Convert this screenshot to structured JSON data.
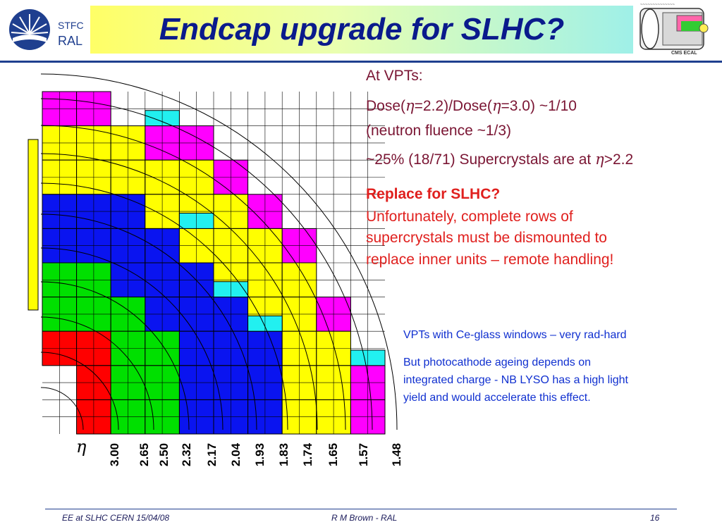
{
  "header": {
    "logo_icon": "stfc-sunburst-icon",
    "logo_line1": "STFC",
    "logo_line2": "RAL",
    "title": "Endcap upgrade for SLHC?",
    "thumbnail_icon": "cms-detector-icon",
    "thumbnail_caption": "CMS ECAL"
  },
  "diagram": {
    "eta_symbol": "η",
    "eta_labels": [
      "3.00",
      "2.65",
      "2.50",
      "2.32",
      "2.17",
      "2.04",
      "1.93",
      "1.83",
      "1.74",
      "1.65",
      "1.57",
      "1.48"
    ],
    "colors": {
      "magenta": "#ff00ff",
      "cyan": "#22f0f0",
      "yellow": "#ffff00",
      "blue": "#0a14f0",
      "green": "#00e000",
      "red": "#ff0000"
    }
  },
  "notes": {
    "line1": "At VPTs:",
    "line2_a": "Dose(",
    "line2_b": "=2.2)/Dose(",
    "line2_c": "=3.0) ~1/10",
    "line3": "(neutron fluence ~1/3)",
    "line4_a": "~25% (18/71) Supercrystals are at",
    "line4_b": ">2.2",
    "replace_heading": "Replace for SLHC?",
    "replace_body_1": "Unfortunately, complete rows of",
    "replace_body_2": "supercrystals  must be dismounted to",
    "replace_body_3": "replace inner units – remote handling!",
    "vpt_note": "VPTs with Ce-glass windows – very rad-hard",
    "ageing_1": "But photocathode ageing depends on",
    "ageing_2": "integrated charge - NB LYSO has a high light",
    "ageing_3": "yield and would accelerate this effect."
  },
  "footer": {
    "left": "EE at SLHC CERN 15/04/08",
    "center": "R M Brown - RAL",
    "page": "16"
  }
}
